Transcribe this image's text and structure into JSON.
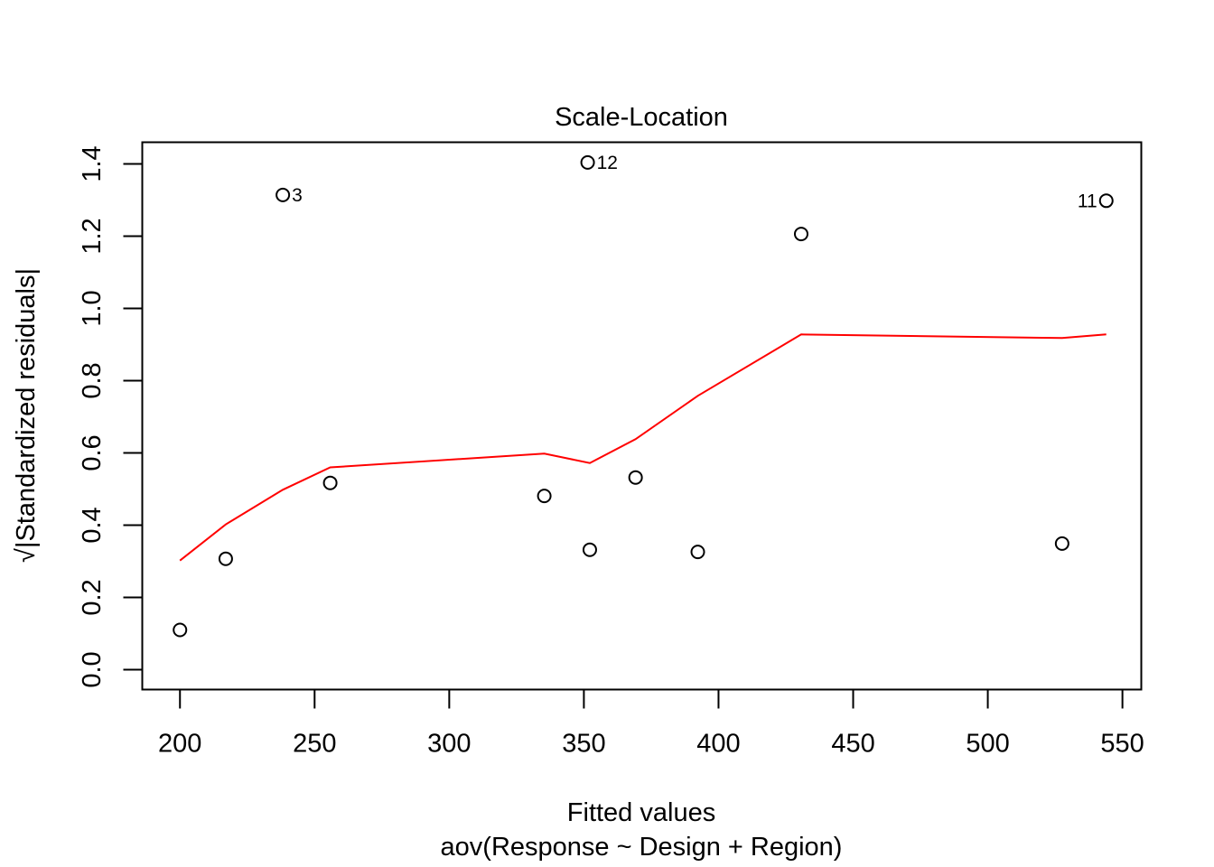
{
  "chart_data": {
    "type": "scatter",
    "title": "Scale-Location",
    "xlabel": "Fitted values",
    "subtitle": "aov(Response ~ Design + Region)",
    "ylabel": "√|Standardized residuals|",
    "xlim": [
      186,
      557
    ],
    "ylim": [
      -0.055,
      1.46
    ],
    "x_ticks": [
      200,
      250,
      300,
      350,
      400,
      450,
      500,
      550
    ],
    "y_ticks": [
      0.0,
      0.2,
      0.4,
      0.6,
      0.8,
      1.0,
      1.2,
      1.4
    ],
    "x_tick_labels": [
      "200",
      "250",
      "300",
      "350",
      "400",
      "450",
      "500",
      "550"
    ],
    "y_tick_labels": [
      "0.0",
      "0.2",
      "0.4",
      "0.6",
      "0.8",
      "1.0",
      "1.2",
      "1.4"
    ],
    "points": [
      {
        "x": 200.0,
        "y": 0.11,
        "label": ""
      },
      {
        "x": 217.0,
        "y": 0.307,
        "label": ""
      },
      {
        "x": 238.2,
        "y": 1.314,
        "label": "3"
      },
      {
        "x": 255.8,
        "y": 0.517,
        "label": ""
      },
      {
        "x": 335.3,
        "y": 0.481,
        "label": ""
      },
      {
        "x": 351.4,
        "y": 1.404,
        "label": "12"
      },
      {
        "x": 352.2,
        "y": 0.332,
        "label": ""
      },
      {
        "x": 369.2,
        "y": 0.532,
        "label": ""
      },
      {
        "x": 392.3,
        "y": 0.326,
        "label": ""
      },
      {
        "x": 430.7,
        "y": 1.206,
        "label": ""
      },
      {
        "x": 527.6,
        "y": 0.349,
        "label": ""
      },
      {
        "x": 544.0,
        "y": 1.298,
        "label": "11"
      }
    ],
    "smooth_line": {
      "color": "#ff0000",
      "x": [
        200,
        217,
        238.2,
        255.8,
        335.3,
        352.2,
        369.2,
        392.3,
        430.7,
        527.6,
        544.0
      ],
      "y": [
        0.302,
        0.402,
        0.498,
        0.56,
        0.598,
        0.572,
        0.638,
        0.758,
        0.928,
        0.918,
        0.928
      ]
    },
    "grid": false,
    "legend": "none",
    "point_color": "#000000"
  }
}
